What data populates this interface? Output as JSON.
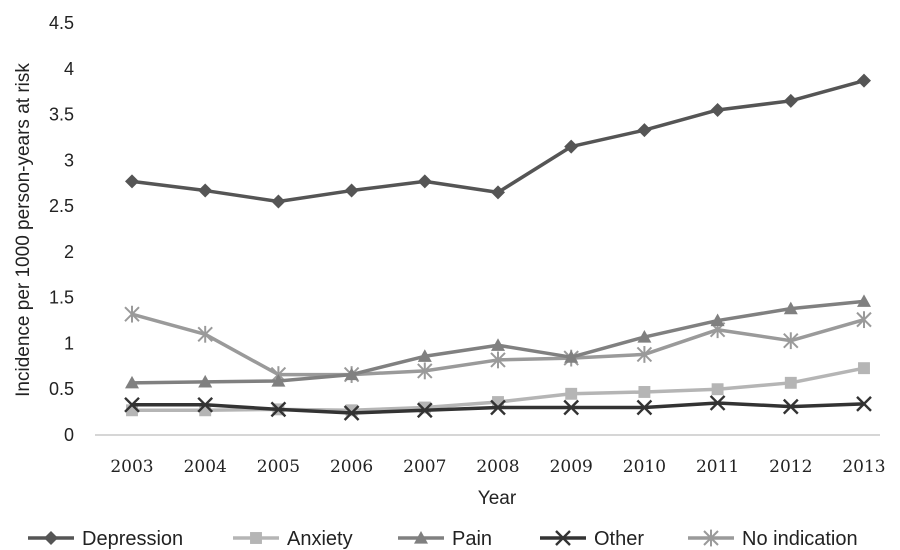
{
  "chart_data": {
    "type": "line",
    "title": "",
    "xlabel": "Year",
    "ylabel": "Incidence per 1000 person-years at risk",
    "categories": [
      "2003",
      "2004",
      "2005",
      "2006",
      "2007",
      "2008",
      "2009",
      "2010",
      "2011",
      "2012",
      "2013"
    ],
    "ylim": [
      0,
      4.5
    ],
    "yticks": [
      "0",
      "0.5",
      "1",
      "1.5",
      "2",
      "2.5",
      "3",
      "3.5",
      "4",
      "4.5"
    ],
    "grid": false,
    "legend_position": "bottom",
    "series": [
      {
        "name": "Depression",
        "marker": "diamond",
        "color": "#555555",
        "values": [
          2.77,
          2.67,
          2.55,
          2.67,
          2.77,
          2.65,
          3.15,
          3.33,
          3.55,
          3.65,
          3.87
        ]
      },
      {
        "name": "Anxiety",
        "marker": "square",
        "color": "#b5b5b5",
        "values": [
          0.27,
          0.27,
          0.28,
          0.27,
          0.3,
          0.36,
          0.45,
          0.47,
          0.5,
          0.57,
          0.73
        ]
      },
      {
        "name": "Pain",
        "marker": "triangle",
        "color": "#808080",
        "values": [
          0.57,
          0.58,
          0.59,
          0.66,
          0.86,
          0.98,
          0.85,
          1.07,
          1.25,
          1.38,
          1.46
        ]
      },
      {
        "name": "Other",
        "marker": "x",
        "color": "#333333",
        "values": [
          0.33,
          0.33,
          0.28,
          0.24,
          0.27,
          0.3,
          0.3,
          0.3,
          0.35,
          0.31,
          0.34
        ]
      },
      {
        "name": "No indication",
        "marker": "star",
        "color": "#9a9a9a",
        "values": [
          1.32,
          1.1,
          0.66,
          0.66,
          0.7,
          0.82,
          0.84,
          0.88,
          1.15,
          1.03,
          1.26
        ]
      }
    ]
  }
}
